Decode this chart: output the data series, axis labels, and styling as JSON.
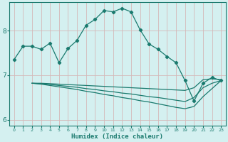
{
  "xlabel": "Humidex (Indice chaleur)",
  "bg_color": "#cce8e8",
  "plot_bg_color": "#d4f0f0",
  "line_color": "#1a7a6e",
  "grid_color": "#d4b8b8",
  "xlim": [
    -0.5,
    23.5
  ],
  "ylim": [
    5.87,
    8.63
  ],
  "yticks": [
    6,
    7,
    8
  ],
  "xticks": [
    0,
    1,
    2,
    3,
    4,
    5,
    6,
    7,
    8,
    9,
    10,
    11,
    12,
    13,
    14,
    15,
    16,
    17,
    18,
    19,
    20,
    21,
    22,
    23
  ],
  "line1_x": [
    0,
    1,
    2,
    3,
    4,
    5,
    6,
    7,
    8,
    9,
    10,
    11,
    12,
    13,
    14,
    15,
    16,
    17,
    18,
    19,
    20,
    21,
    22,
    23
  ],
  "line1_y": [
    7.35,
    7.65,
    7.65,
    7.58,
    7.72,
    7.28,
    7.6,
    7.78,
    8.12,
    8.25,
    8.45,
    8.42,
    8.5,
    8.42,
    8.02,
    7.7,
    7.58,
    7.42,
    7.28,
    6.88,
    6.42,
    6.82,
    6.95,
    6.88
  ],
  "line2_x": [
    2,
    3,
    4,
    5,
    6,
    7,
    8,
    9,
    10,
    11,
    12,
    13,
    14,
    15,
    16,
    17,
    18,
    19,
    20,
    21,
    22,
    23
  ],
  "line2_y": [
    6.82,
    6.82,
    6.81,
    6.8,
    6.79,
    6.78,
    6.77,
    6.76,
    6.75,
    6.74,
    6.73,
    6.72,
    6.71,
    6.7,
    6.69,
    6.68,
    6.67,
    6.66,
    6.72,
    6.9,
    6.92,
    6.9
  ],
  "line3_x": [
    2,
    3,
    4,
    5,
    6,
    7,
    8,
    9,
    10,
    11,
    12,
    13,
    14,
    15,
    16,
    17,
    18,
    19,
    20,
    21,
    22,
    23
  ],
  "line3_y": [
    6.82,
    6.81,
    6.79,
    6.77,
    6.75,
    6.73,
    6.7,
    6.68,
    6.65,
    6.63,
    6.6,
    6.58,
    6.55,
    6.52,
    6.5,
    6.47,
    6.44,
    6.41,
    6.5,
    6.72,
    6.82,
    6.88
  ],
  "line4_x": [
    2,
    3,
    4,
    5,
    6,
    7,
    8,
    9,
    10,
    11,
    12,
    13,
    14,
    15,
    16,
    17,
    18,
    19,
    20,
    21,
    22,
    23
  ],
  "line4_y": [
    6.82,
    6.8,
    6.77,
    6.74,
    6.71,
    6.68,
    6.64,
    6.61,
    6.57,
    6.54,
    6.5,
    6.47,
    6.43,
    6.4,
    6.36,
    6.32,
    6.28,
    6.25,
    6.3,
    6.52,
    6.7,
    6.88
  ]
}
